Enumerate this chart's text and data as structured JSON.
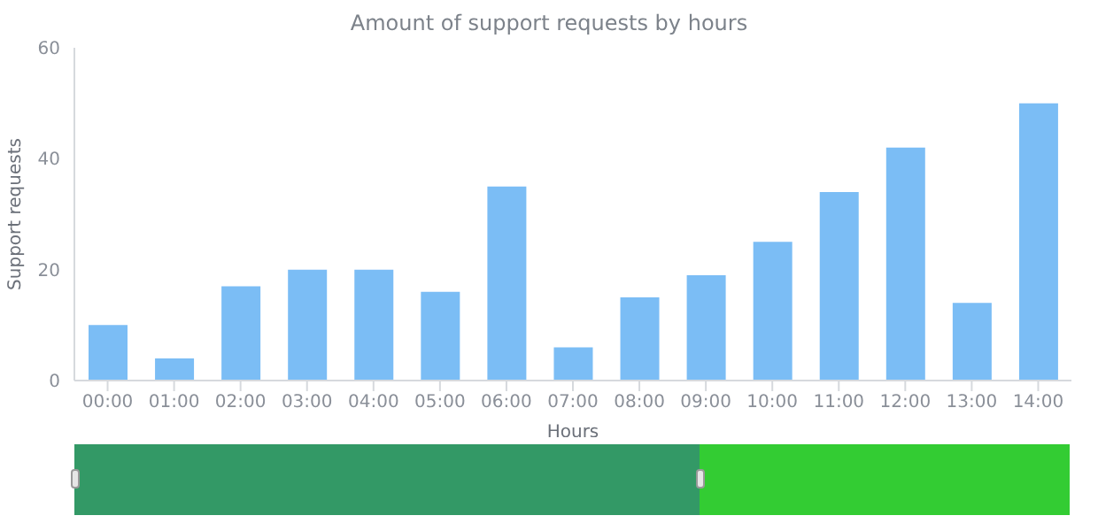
{
  "chart_data": {
    "type": "bar",
    "title": "Amount of support requests by hours",
    "xlabel": "Hours",
    "ylabel": "Support requests",
    "categories": [
      "00:00",
      "01:00",
      "02:00",
      "03:00",
      "04:00",
      "05:00",
      "06:00",
      "07:00",
      "08:00",
      "09:00",
      "10:00",
      "11:00",
      "12:00",
      "13:00",
      "14:00"
    ],
    "values": [
      10,
      4,
      17,
      20,
      20,
      16,
      35,
      6,
      15,
      19,
      25,
      34,
      42,
      14,
      50
    ],
    "color": "#7bbdf5",
    "ylim": [
      0,
      60
    ],
    "yticks": [
      0,
      20,
      40,
      60
    ]
  }
}
